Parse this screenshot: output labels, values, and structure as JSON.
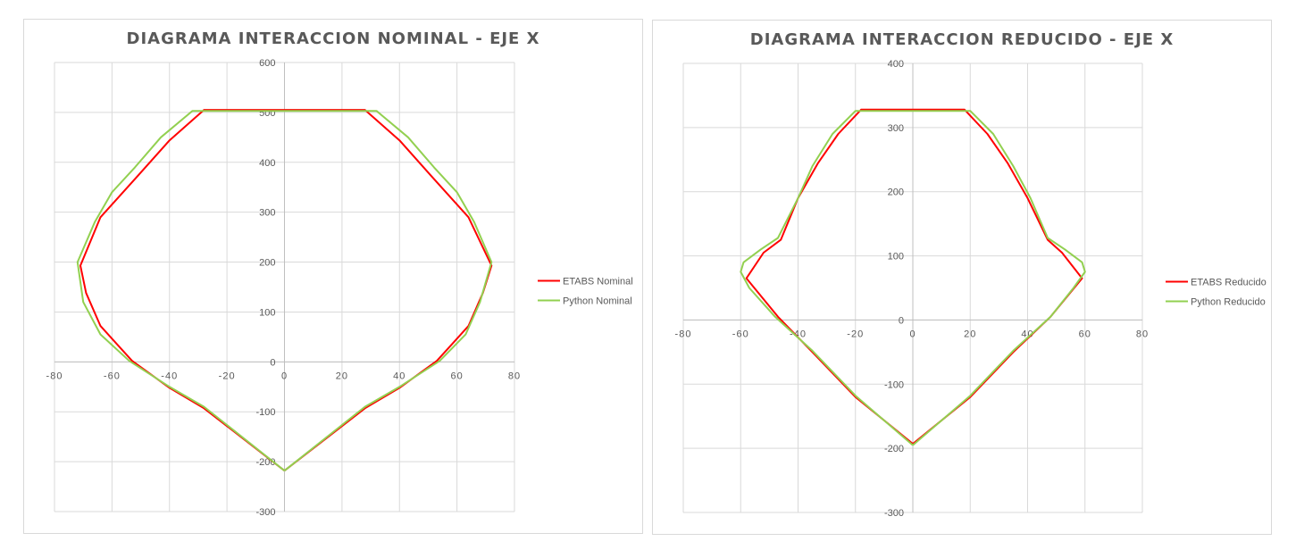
{
  "charts": [
    {
      "title": "DIAGRAMA INTERACCION NOMINAL - EJE X"
    },
    {
      "title": "DIAGRAMA INTERACCION REDUCIDO - EJE X"
    }
  ],
  "chart_data": [
    {
      "type": "scatter",
      "title": "DIAGRAMA INTERACCION NOMINAL - EJE X",
      "xlabel": "",
      "ylabel": "",
      "xlim": [
        -80,
        80
      ],
      "ylim": [
        -300,
        600
      ],
      "xticks": [
        -80,
        -60,
        -40,
        -20,
        0,
        20,
        40,
        60,
        80
      ],
      "yticks": [
        -300,
        -200,
        -100,
        0,
        100,
        200,
        300,
        400,
        500,
        600
      ],
      "grid": true,
      "legend_position": "right",
      "series": [
        {
          "name": "ETABS Nominal",
          "color": "#ff0000",
          "points": [
            [
              0,
              -218
            ],
            [
              28,
              -93
            ],
            [
              40,
              -52
            ],
            [
              53,
              2
            ],
            [
              64,
              72
            ],
            [
              69,
              138
            ],
            [
              72,
              193
            ],
            [
              64,
              290
            ],
            [
              51,
              373
            ],
            [
              40,
              444
            ],
            [
              28,
              505
            ],
            [
              0,
              505
            ],
            [
              -28,
              505
            ],
            [
              -40,
              444
            ],
            [
              -51,
              373
            ],
            [
              -64,
              290
            ],
            [
              -71,
              193
            ],
            [
              -69,
              138
            ],
            [
              -64,
              72
            ],
            [
              -53,
              2
            ],
            [
              -40,
              -52
            ],
            [
              -28,
              -93
            ],
            [
              0,
              -218
            ]
          ]
        },
        {
          "name": "Python Nominal",
          "color": "#92d050",
          "points": [
            [
              0,
              -218
            ],
            [
              28,
              -90
            ],
            [
              40,
              -50
            ],
            [
              54,
              2
            ],
            [
              63,
              55
            ],
            [
              68,
              120
            ],
            [
              72,
              200
            ],
            [
              66,
              280
            ],
            [
              60,
              340
            ],
            [
              52,
              390
            ],
            [
              43,
              450
            ],
            [
              32,
              503
            ],
            [
              0,
              503
            ],
            [
              -32,
              503
            ],
            [
              -43,
              450
            ],
            [
              -52,
              390
            ],
            [
              -60,
              340
            ],
            [
              -66,
              280
            ],
            [
              -72,
              200
            ],
            [
              -70,
              120
            ],
            [
              -64,
              55
            ],
            [
              -54,
              2
            ],
            [
              -40,
              -50
            ],
            [
              -28,
              -90
            ],
            [
              0,
              -218
            ]
          ]
        }
      ]
    },
    {
      "type": "scatter",
      "title": "DIAGRAMA INTERACCION REDUCIDO - EJE X",
      "xlabel": "",
      "ylabel": "",
      "xlim": [
        -80,
        80
      ],
      "ylim": [
        -300,
        400
      ],
      "xticks": [
        -80,
        -60,
        -40,
        -20,
        0,
        20,
        40,
        60,
        80
      ],
      "yticks": [
        -300,
        -200,
        -100,
        0,
        100,
        200,
        300,
        400
      ],
      "grid": true,
      "legend_position": "right",
      "series": [
        {
          "name": "ETABS Reducido",
          "color": "#ff0000",
          "points": [
            [
              0,
              -193
            ],
            [
              20,
              -120
            ],
            [
              35,
              -50
            ],
            [
              48,
              5
            ],
            [
              59,
              65
            ],
            [
              52,
              105
            ],
            [
              47,
              125
            ],
            [
              40,
              190
            ],
            [
              33,
              245
            ],
            [
              26,
              290
            ],
            [
              18,
              328
            ],
            [
              0,
              328
            ],
            [
              -18,
              328
            ],
            [
              -26,
              290
            ],
            [
              -33,
              245
            ],
            [
              -40,
              190
            ],
            [
              -46,
              125
            ],
            [
              -52,
              105
            ],
            [
              -58,
              65
            ],
            [
              -47,
              5
            ],
            [
              -35,
              -50
            ],
            [
              -20,
              -120
            ],
            [
              0,
              -193
            ]
          ]
        },
        {
          "name": "Python Reducido",
          "color": "#92d050",
          "points": [
            [
              0,
              -195
            ],
            [
              20,
              -118
            ],
            [
              35,
              -48
            ],
            [
              48,
              5
            ],
            [
              56,
              50
            ],
            [
              60,
              75
            ],
            [
              59,
              90
            ],
            [
              53,
              110
            ],
            [
              47,
              128
            ],
            [
              41,
              190
            ],
            [
              35,
              240
            ],
            [
              28,
              290
            ],
            [
              20,
              326
            ],
            [
              0,
              326
            ],
            [
              -20,
              326
            ],
            [
              -28,
              290
            ],
            [
              -35,
              240
            ],
            [
              -40,
              190
            ],
            [
              -47,
              128
            ],
            [
              -53,
              110
            ],
            [
              -59,
              90
            ],
            [
              -60,
              75
            ],
            [
              -57,
              50
            ],
            [
              -48,
              5
            ],
            [
              -35,
              -48
            ],
            [
              -20,
              -118
            ],
            [
              0,
              -195
            ]
          ]
        }
      ]
    }
  ]
}
